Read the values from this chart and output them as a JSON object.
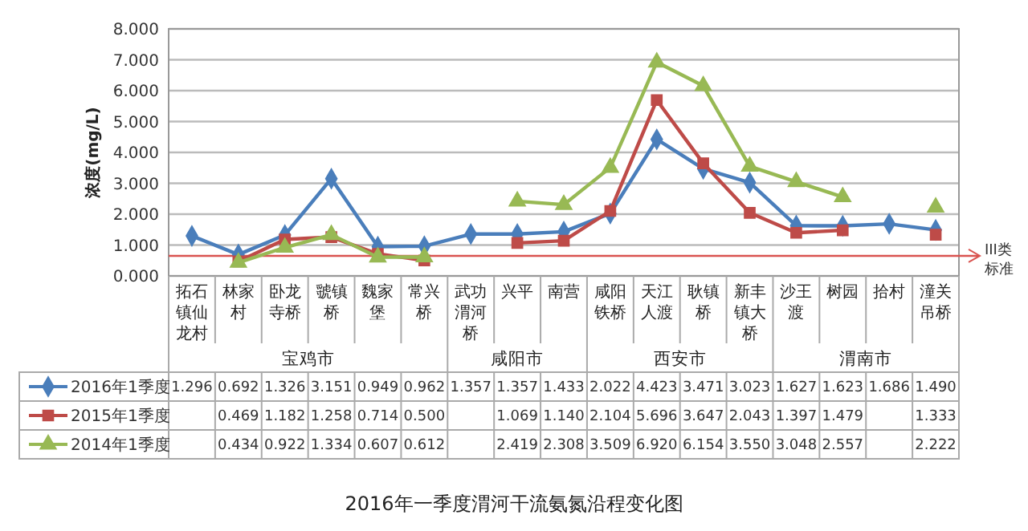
{
  "chart_data": {
    "type": "line",
    "title": "2016年一季度渭河干流氨氮沿程变化图",
    "ylabel": "浓度(mg/L)",
    "categories": [
      "拓石镇仙龙村",
      "林家村",
      "卧龙寺桥",
      "虢镇桥",
      "魏家堡",
      "常兴桥",
      "武功渭河桥",
      "兴平",
      "南营",
      "咸阳铁桥",
      "天江人渡",
      "耿镇桥",
      "新丰镇大桥",
      "沙王渡",
      "树园",
      "拾村",
      "潼关吊桥"
    ],
    "series": [
      {
        "name": "2016年1季度",
        "color": "#4a7ebb",
        "marker": "diamond",
        "values": [
          1.296,
          0.692,
          1.326,
          3.151,
          0.949,
          0.962,
          1.357,
          1.357,
          1.433,
          2.022,
          4.423,
          3.471,
          3.023,
          1.627,
          1.623,
          1.686,
          1.49
        ],
        "value_labels": [
          "1.296",
          "0.692",
          "1.326",
          "3.151",
          "0.949",
          "0.962",
          "1.357",
          "1.357",
          "1.433",
          "2.022",
          "4.423",
          "3.471",
          "3.023",
          "1.627",
          "1.623",
          "1.686",
          "1.490"
        ]
      },
      {
        "name": "2015年1季度",
        "color": "#be4b48",
        "marker": "square",
        "values": [
          null,
          0.469,
          1.182,
          1.258,
          0.714,
          0.5,
          null,
          1.069,
          1.14,
          2.104,
          5.696,
          3.647,
          2.043,
          1.397,
          1.479,
          null,
          1.333
        ],
        "value_labels": [
          null,
          "0.469",
          "1.182",
          "1.258",
          "0.714",
          "0.500",
          null,
          "1.069",
          "1.140",
          "2.104",
          "5.696",
          "3.647",
          "2.043",
          "1.397",
          "1.479",
          null,
          "1.333"
        ]
      },
      {
        "name": "2014年1季度",
        "color": "#98b954",
        "marker": "triangle",
        "values": [
          null,
          0.434,
          0.922,
          1.334,
          0.607,
          0.612,
          null,
          2.419,
          2.308,
          3.509,
          6.92,
          6.154,
          3.55,
          3.048,
          2.557,
          null,
          2.222
        ],
        "value_labels": [
          null,
          "0.434",
          "0.922",
          "1.334",
          "0.607",
          "0.612",
          null,
          "2.419",
          "2.308",
          "3.509",
          "6.920",
          "6.154",
          "3.550",
          "3.048",
          "2.557",
          null,
          "2.222"
        ]
      }
    ],
    "ylim": [
      0,
      8
    ],
    "yticks": [
      {
        "value": 0,
        "label": "0.000"
      },
      {
        "value": 1,
        "label": "1.000"
      },
      {
        "value": 2,
        "label": "2.000"
      },
      {
        "value": 3,
        "label": "3.000"
      },
      {
        "value": 4,
        "label": "4.000"
      },
      {
        "value": 5,
        "label": "5.000"
      },
      {
        "value": 6,
        "label": "6.000"
      },
      {
        "value": 7,
        "label": "7.000"
      },
      {
        "value": 8,
        "label": "8.000"
      }
    ],
    "grid": "y",
    "legend": "bottom",
    "line_style": "solid",
    "ref_lines": [
      {
        "axis": "y",
        "value": 0.65,
        "label": "III类标准",
        "color": "#d9534f"
      }
    ],
    "annotations": [
      "宝鸡市",
      "咸阳市",
      "西安市",
      "渭南市"
    ]
  }
}
